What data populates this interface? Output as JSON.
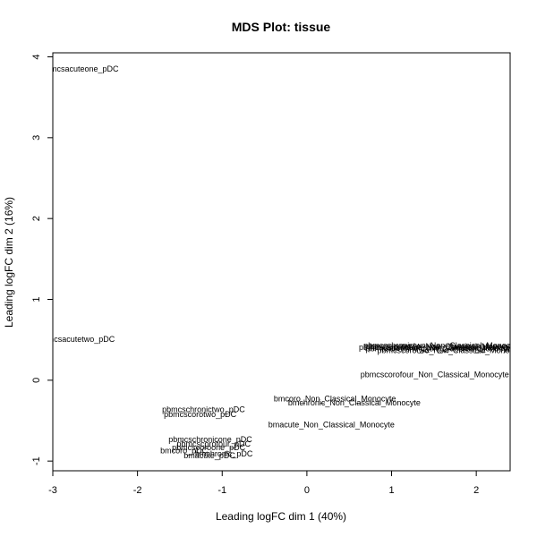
{
  "chart_data": {
    "type": "scatter",
    "title": "MDS Plot: tissue",
    "xlabel": "Leading logFC dim 1 (40%)",
    "ylabel": "Leading logFC dim 2 (16%)",
    "xlim": [
      -3.0,
      2.4
    ],
    "ylim": [
      -1.12,
      4.05
    ],
    "x_ticks": [
      "-3",
      "-2",
      "-1",
      "0",
      "1",
      "2"
    ],
    "y_ticks": [
      "-1",
      "0",
      "1",
      "2",
      "3",
      "4"
    ],
    "x_tick_values": [
      -3,
      -2,
      -1,
      0,
      1,
      2
    ],
    "y_tick_values": [
      -1,
      0,
      1,
      2,
      3,
      4
    ],
    "grid": false,
    "points": [
      {
        "label": "pbmcsacuteone_pDC",
        "x": -2.68,
        "y": 3.85
      },
      {
        "label": "pbmcsacutetwo_pDC",
        "x": -2.72,
        "y": 0.51
      },
      {
        "label": "pbmcschronictwo_pDC",
        "x": -1.22,
        "y": -0.36
      },
      {
        "label": "pbmcscorotwo_pDC",
        "x": -1.26,
        "y": -0.42
      },
      {
        "label": "pbmcschronicone_pDC",
        "x": -1.14,
        "y": -0.73
      },
      {
        "label": "pbmcscorofour_pDC",
        "x": -1.1,
        "y": -0.79
      },
      {
        "label": "pbmcscoroone_pDC",
        "x": -1.16,
        "y": -0.83
      },
      {
        "label": "bmcoro_pDC",
        "x": -1.45,
        "y": -0.87
      },
      {
        "label": "bmchronic_pDC",
        "x": -0.98,
        "y": -0.91
      },
      {
        "label": "bmacute_pDC",
        "x": -1.15,
        "y": -0.93
      },
      {
        "label": "bmcoro_Non_Classical_Monocyte",
        "x": 0.33,
        "y": -0.23
      },
      {
        "label": "bmchronic_Non_Classical_Monocyte",
        "x": 0.56,
        "y": -0.28
      },
      {
        "label": "bmacute_Non_Classical_Monocyte",
        "x": 0.29,
        "y": -0.55
      },
      {
        "label": "pbmcscorofour_Non_Classical_Monocyte",
        "x": 1.51,
        "y": 0.07
      },
      {
        "label": "pbmcschronictwo_Non_Classical_Monocyte",
        "x": 1.6,
        "y": 0.43
      },
      {
        "label": "pbmcschronicone_Non_Classical_Monocyte",
        "x": 1.55,
        "y": 0.41
      },
      {
        "label": "pbmcsacutetwo_Non_Classical_Monocyte",
        "x": 1.58,
        "y": 0.42
      },
      {
        "label": "pbmcsacuteone_Non_Classical_Monocyte",
        "x": 1.62,
        "y": 0.4
      },
      {
        "label": "pbmcscoroone_Non_Classical_Monocyte",
        "x": 1.57,
        "y": 0.39
      },
      {
        "label": "pbmcscorotwo_Non_Classical_Monocyte",
        "x": 1.7,
        "y": 0.37
      }
    ]
  }
}
